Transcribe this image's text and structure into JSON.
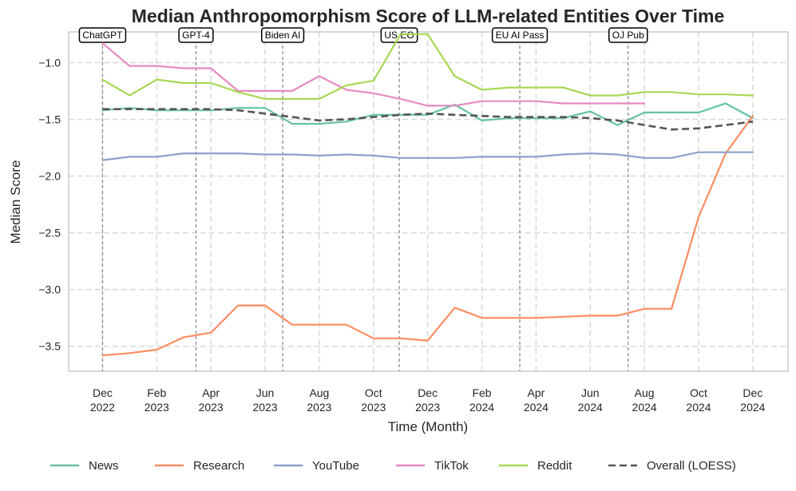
{
  "colors": {
    "News": "#66c2a5",
    "Research": "#fc8d62",
    "YouTube": "#8da0cb",
    "TikTok": "#e78ac3",
    "Reddit": "#a6d854",
    "Overall": "#555555"
  },
  "chart_data": {
    "type": "line",
    "title": "Median Anthropomorphism Score of LLM-related Entities Over Time",
    "xlabel": "Time (Month)",
    "ylabel": "Median Score",
    "ylim": [
      -3.72,
      -0.73
    ],
    "xlim": [
      -1.25,
      25.3
    ],
    "grid": true,
    "legend_position": "bottom",
    "y_ticks": [
      {
        "value": -1.0,
        "label": "−1.0"
      },
      {
        "value": -1.5,
        "label": "−1.5"
      },
      {
        "value": -2.0,
        "label": "−2.0"
      },
      {
        "value": -2.5,
        "label": "−2.5"
      },
      {
        "value": -3.0,
        "label": "−3.0"
      },
      {
        "value": -3.5,
        "label": "−3.5"
      }
    ],
    "x_ticks": [
      {
        "value": 0,
        "line1": "Dec",
        "line2": "2022"
      },
      {
        "value": 2,
        "line1": "Feb",
        "line2": "2023"
      },
      {
        "value": 4,
        "line1": "Apr",
        "line2": "2023"
      },
      {
        "value": 6,
        "line1": "Jun",
        "line2": "2023"
      },
      {
        "value": 8,
        "line1": "Aug",
        "line2": "2023"
      },
      {
        "value": 10,
        "line1": "Oct",
        "line2": "2023"
      },
      {
        "value": 12,
        "line1": "Dec",
        "line2": "2023"
      },
      {
        "value": 14,
        "line1": "Feb",
        "line2": "2024"
      },
      {
        "value": 16,
        "line1": "Apr",
        "line2": "2024"
      },
      {
        "value": 18,
        "line1": "Jun",
        "line2": "2024"
      },
      {
        "value": 20,
        "line1": "Aug",
        "line2": "2024"
      },
      {
        "value": 22,
        "line1": "Oct",
        "line2": "2024"
      },
      {
        "value": 24,
        "line1": "Dec",
        "line2": "2024"
      }
    ],
    "events": [
      {
        "label": "ChatGPT",
        "x": 0
      },
      {
        "label": "GPT-4",
        "x": 3.45
      },
      {
        "label": "Biden AI",
        "x": 6.65
      },
      {
        "label": "US EO",
        "x": 10.95
      },
      {
        "label": "EU AI Pass",
        "x": 15.4
      },
      {
        "label": "OJ Pub",
        "x": 19.4
      }
    ],
    "series": [
      {
        "name": "News",
        "color_key": "News",
        "dashed": false,
        "x": [
          0,
          1,
          2,
          3,
          4,
          5,
          6,
          7,
          8,
          9,
          10,
          11,
          12,
          13,
          14,
          15,
          16,
          17,
          18,
          19,
          20,
          21,
          22,
          23,
          24
        ],
        "values": [
          -1.42,
          -1.4,
          -1.42,
          -1.42,
          -1.42,
          -1.4,
          -1.4,
          -1.54,
          -1.54,
          -1.52,
          -1.46,
          -1.46,
          -1.46,
          -1.37,
          -1.51,
          -1.49,
          -1.49,
          -1.49,
          -1.43,
          -1.55,
          -1.44,
          -1.44,
          -1.44,
          -1.36,
          -1.49
        ]
      },
      {
        "name": "Research",
        "color_key": "Research",
        "dashed": false,
        "x": [
          0,
          1,
          2,
          3,
          4,
          5,
          6,
          7,
          8,
          9,
          10,
          11,
          12,
          13,
          14,
          15,
          16,
          17,
          18,
          19,
          20,
          21,
          22,
          23,
          24
        ],
        "values": [
          -3.58,
          -3.56,
          -3.53,
          -3.42,
          -3.38,
          -3.14,
          -3.14,
          -3.31,
          -3.31,
          -3.31,
          -3.43,
          -3.43,
          -3.45,
          -3.16,
          -3.25,
          -3.25,
          -3.25,
          -3.24,
          -3.23,
          -3.23,
          -3.17,
          -3.17,
          -2.36,
          -1.8,
          -1.47
        ]
      },
      {
        "name": "YouTube",
        "color_key": "YouTube",
        "dashed": false,
        "x": [
          0,
          1,
          2,
          3,
          4,
          5,
          6,
          7,
          8,
          9,
          10,
          11,
          12,
          13,
          14,
          15,
          16,
          17,
          18,
          19,
          20,
          21,
          22,
          23,
          24
        ],
        "values": [
          -1.86,
          -1.83,
          -1.83,
          -1.8,
          -1.8,
          -1.8,
          -1.81,
          -1.81,
          -1.82,
          -1.81,
          -1.82,
          -1.84,
          -1.84,
          -1.84,
          -1.83,
          -1.83,
          -1.83,
          -1.81,
          -1.8,
          -1.81,
          -1.84,
          -1.84,
          -1.79,
          -1.79,
          -1.79
        ]
      },
      {
        "name": "TikTok",
        "color_key": "TikTok",
        "dashed": false,
        "x": [
          0,
          1,
          2,
          3,
          4,
          5,
          6,
          7,
          8,
          9,
          10,
          11,
          12,
          13,
          14,
          15,
          16,
          17,
          18,
          19,
          20
        ],
        "values": [
          -0.83,
          -1.03,
          -1.03,
          -1.05,
          -1.05,
          -1.25,
          -1.25,
          -1.25,
          -1.12,
          -1.24,
          -1.27,
          -1.32,
          -1.38,
          -1.38,
          -1.34,
          -1.34,
          -1.34,
          -1.36,
          -1.36,
          -1.36,
          -1.36
        ]
      },
      {
        "name": "Reddit",
        "color_key": "Reddit",
        "dashed": false,
        "x": [
          0,
          1,
          2,
          3,
          4,
          5,
          6,
          7,
          8,
          9,
          10,
          11,
          12,
          13,
          14,
          15,
          16,
          17,
          18,
          19,
          20,
          21,
          22,
          23,
          24
        ],
        "values": [
          -1.15,
          -1.29,
          -1.15,
          -1.18,
          -1.18,
          -1.26,
          -1.32,
          -1.32,
          -1.32,
          -1.2,
          -1.16,
          -0.75,
          -0.75,
          -1.12,
          -1.24,
          -1.22,
          -1.22,
          -1.22,
          -1.29,
          -1.29,
          -1.26,
          -1.26,
          -1.28,
          -1.28,
          -1.29
        ]
      },
      {
        "name": "Overall (LOESS)",
        "color_key": "Overall",
        "dashed": true,
        "x": [
          0,
          1,
          2,
          3,
          4,
          5,
          6,
          7,
          8,
          9,
          10,
          11,
          12,
          13,
          14,
          15,
          16,
          17,
          18,
          19,
          20,
          21,
          22,
          23,
          24
        ],
        "values": [
          -1.41,
          -1.41,
          -1.41,
          -1.41,
          -1.41,
          -1.42,
          -1.45,
          -1.48,
          -1.51,
          -1.5,
          -1.48,
          -1.46,
          -1.45,
          -1.46,
          -1.47,
          -1.48,
          -1.48,
          -1.48,
          -1.49,
          -1.51,
          -1.55,
          -1.59,
          -1.58,
          -1.55,
          -1.52
        ]
      }
    ]
  }
}
